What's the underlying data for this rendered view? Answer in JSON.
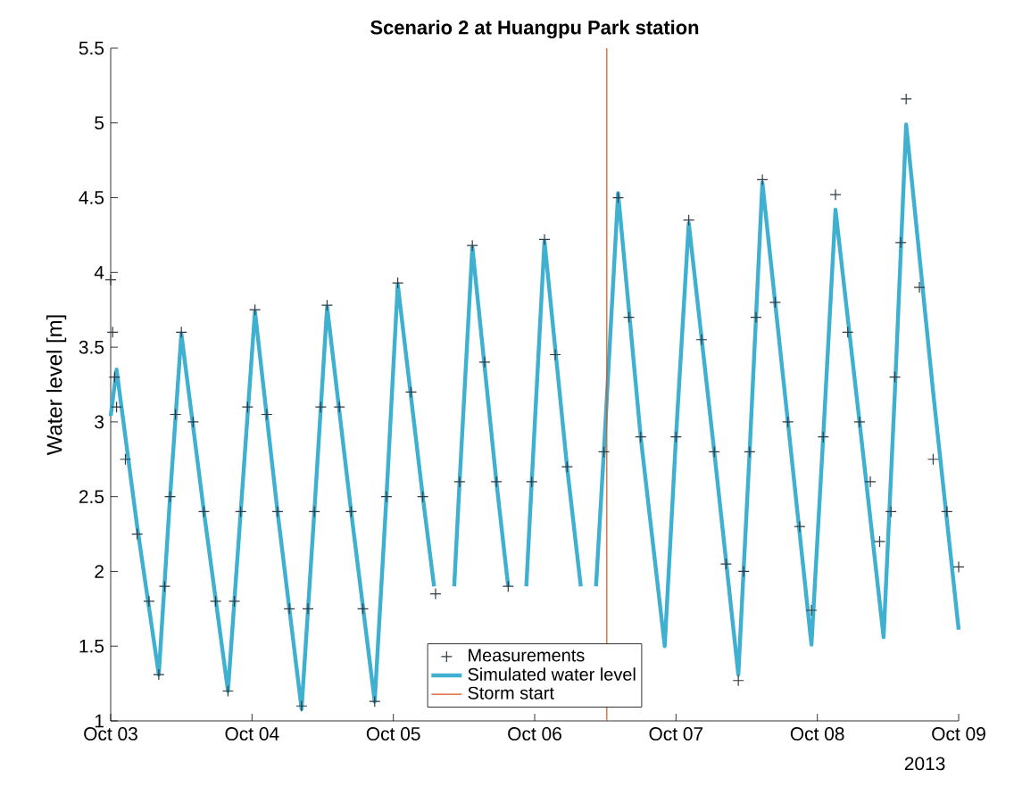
{
  "chart_data": {
    "type": "line",
    "title": "Scenario 2 at Huangpu Park station",
    "ylabel": "Water level [m]",
    "xlim": [
      "2013-10-03",
      "2013-10-09"
    ],
    "xticks": [
      {
        "value": "2013-10-03",
        "label": "Oct 03"
      },
      {
        "value": "2013-10-04",
        "label": "Oct 04"
      },
      {
        "value": "2013-10-05",
        "label": "Oct 05"
      },
      {
        "value": "2013-10-06",
        "label": "Oct 06"
      },
      {
        "value": "2013-10-07",
        "label": "Oct 07"
      },
      {
        "value": "2013-10-08",
        "label": "Oct 08"
      },
      {
        "value": "2013-10-09",
        "label": "Oct 09"
      }
    ],
    "ylim": [
      1,
      5.5
    ],
    "yticks": [
      1,
      1.5,
      2,
      2.5,
      3,
      3.5,
      4,
      4.5,
      5,
      5.5
    ],
    "annotations": [
      "2013"
    ],
    "legend": "bottom",
    "grid": false,
    "series": [
      {
        "name": "Measurements",
        "type": "scatter",
        "marker": "cross",
        "color": "#2e3b45",
        "x": [
          "2013-10-03T00:00",
          "2013-10-03T00:20",
          "2013-10-03T00:40",
          "2013-10-03T01:00",
          "2013-10-03T02:30",
          "2013-10-03T04:30",
          "2013-10-03T06:30",
          "2013-10-03T08:10",
          "2013-10-03T09:10",
          "2013-10-03T10:05",
          "2013-10-03T11:00",
          "2013-10-03T12:00",
          "2013-10-03T14:00",
          "2013-10-03T15:50",
          "2013-10-03T17:50",
          "2013-10-03T19:55",
          "2013-10-03T21:00",
          "2013-10-03T22:05",
          "2013-10-03T23:15",
          "2013-10-04T00:30",
          "2013-10-04T02:30",
          "2013-10-04T04:20",
          "2013-10-04T06:20",
          "2013-10-04T08:25",
          "2013-10-04T09:30",
          "2013-10-04T10:35",
          "2013-10-04T11:40",
          "2013-10-04T12:45",
          "2013-10-04T14:50",
          "2013-10-04T16:50",
          "2013-10-04T18:50",
          "2013-10-04T20:50",
          "2013-10-04T22:50",
          "2013-10-05T00:45",
          "2013-10-05T03:00",
          "2013-10-05T05:00",
          "2013-10-05T07:10",
          "2013-10-05T09:20",
          "2013-10-05T11:15",
          "2013-10-05T13:25",
          "2013-10-05T15:30",
          "2013-10-05T17:30",
          "2013-10-05T19:30",
          "2013-10-05T23:30",
          "2013-10-06T01:40",
          "2013-10-06T03:30",
          "2013-10-06T05:30",
          "2013-10-06T11:45",
          "2013-10-06T14:10",
          "2013-10-06T16:00",
          "2013-10-06T18:00",
          "2013-10-07T00:00",
          "2013-10-07T02:10",
          "2013-10-07T04:20",
          "2013-10-07T06:30",
          "2013-10-07T08:30",
          "2013-10-07T10:35",
          "2013-10-07T11:30",
          "2013-10-07T12:30",
          "2013-10-07T13:35",
          "2013-10-07T14:40",
          "2013-10-07T16:50",
          "2013-10-07T19:00",
          "2013-10-07T21:00",
          "2013-10-07T23:00",
          "2013-10-08T01:00",
          "2013-10-08T03:05",
          "2013-10-08T05:10",
          "2013-10-08T07:10",
          "2013-10-08T09:00",
          "2013-10-08T10:35",
          "2013-10-08T12:30",
          "2013-10-08T13:10",
          "2013-10-08T14:10",
          "2013-10-08T15:05",
          "2013-10-08T17:20",
          "2013-10-08T19:40",
          "2013-10-08T22:00",
          "2013-10-09T00:00"
        ],
        "values": [
          3.95,
          3.6,
          3.3,
          3.1,
          2.75,
          2.25,
          1.8,
          1.31,
          1.9,
          2.5,
          3.05,
          3.6,
          3.0,
          2.4,
          1.8,
          1.2,
          1.8,
          2.4,
          3.1,
          3.75,
          3.05,
          2.4,
          1.75,
          1.1,
          1.75,
          2.4,
          3.1,
          3.78,
          3.1,
          2.4,
          1.75,
          1.13,
          2.5,
          3.93,
          3.2,
          2.5,
          1.85,
          null,
          2.6,
          4.18,
          3.4,
          2.6,
          1.9,
          2.6,
          4.22,
          3.45,
          2.7,
          2.8,
          4.5,
          3.7,
          2.9,
          2.9,
          4.35,
          3.55,
          2.8,
          2.05,
          1.27,
          2.0,
          2.8,
          3.7,
          4.62,
          3.8,
          3.0,
          2.3,
          1.74,
          2.9,
          4.52,
          3.6,
          3.0,
          2.6,
          2.2,
          2.4,
          3.3,
          4.2,
          5.16,
          3.9,
          2.75,
          2.4,
          2.03
        ]
      },
      {
        "name": "Simulated water level",
        "color": "#3fb0d0",
        "line_style": "solid",
        "x": [
          "2013-10-03T00:00",
          "2013-10-03T01:00",
          "2013-10-03T04:30",
          "2013-10-03T08:10",
          "2013-10-03T10:05",
          "2013-10-03T12:00",
          "2013-10-03T15:50",
          "2013-10-03T19:55",
          "2013-10-03T22:05",
          "2013-10-04T00:30",
          "2013-10-04T04:20",
          "2013-10-04T08:25",
          "2013-10-04T10:35",
          "2013-10-04T12:45",
          "2013-10-04T16:50",
          "2013-10-04T20:50",
          "2013-10-04T22:50",
          "2013-10-05T00:45",
          "2013-10-05T05:00",
          "2013-10-05T06:55",
          "2013-10-05T09:20",
          "2013-10-05T10:20",
          "2013-10-05T11:15",
          "2013-10-05T13:25",
          "2013-10-05T17:30",
          "2013-10-05T19:30",
          "2013-10-05T21:35",
          "2013-10-05T22:35",
          "2013-10-05T23:30",
          "2013-10-06T01:40",
          "2013-10-06T05:30",
          "2013-10-06T07:50",
          "2013-10-06T09:35",
          "2013-10-06T10:25",
          "2013-10-06T11:45",
          "2013-10-06T14:10",
          "2013-10-06T18:00",
          "2013-10-06T22:05",
          "2013-10-07T00:00",
          "2013-10-07T02:10",
          "2013-10-07T06:30",
          "2013-10-07T10:35",
          "2013-10-07T12:30",
          "2013-10-07T14:40",
          "2013-10-07T19:00",
          "2013-10-07T23:00",
          "2013-10-08T01:00",
          "2013-10-08T03:05",
          "2013-10-08T07:10",
          "2013-10-08T11:15",
          "2013-10-08T13:10",
          "2013-10-08T15:05",
          "2013-10-08T19:40",
          "2013-10-09T00:00"
        ],
        "values": [
          3.04,
          3.35,
          2.3,
          1.31,
          2.5,
          3.59,
          2.4,
          1.2,
          2.4,
          3.74,
          2.4,
          1.08,
          2.4,
          3.77,
          2.4,
          1.13,
          2.5,
          3.92,
          2.5,
          1.9,
          null,
          1.9,
          2.6,
          4.17,
          2.6,
          1.9,
          null,
          1.9,
          2.6,
          4.21,
          2.7,
          1.9,
          null,
          1.9,
          2.8,
          4.53,
          2.9,
          1.5,
          2.9,
          4.33,
          2.8,
          1.31,
          2.8,
          4.6,
          3.0,
          1.51,
          2.9,
          4.42,
          3.0,
          1.56,
          3.2,
          4.99,
          3.2,
          1.61
        ]
      }
    ],
    "ref_lines": [
      {
        "axis": "x",
        "value": "2013-10-06T12:15",
        "label": "Storm start",
        "color": "#d95319",
        "line_style": "solid"
      }
    ]
  }
}
